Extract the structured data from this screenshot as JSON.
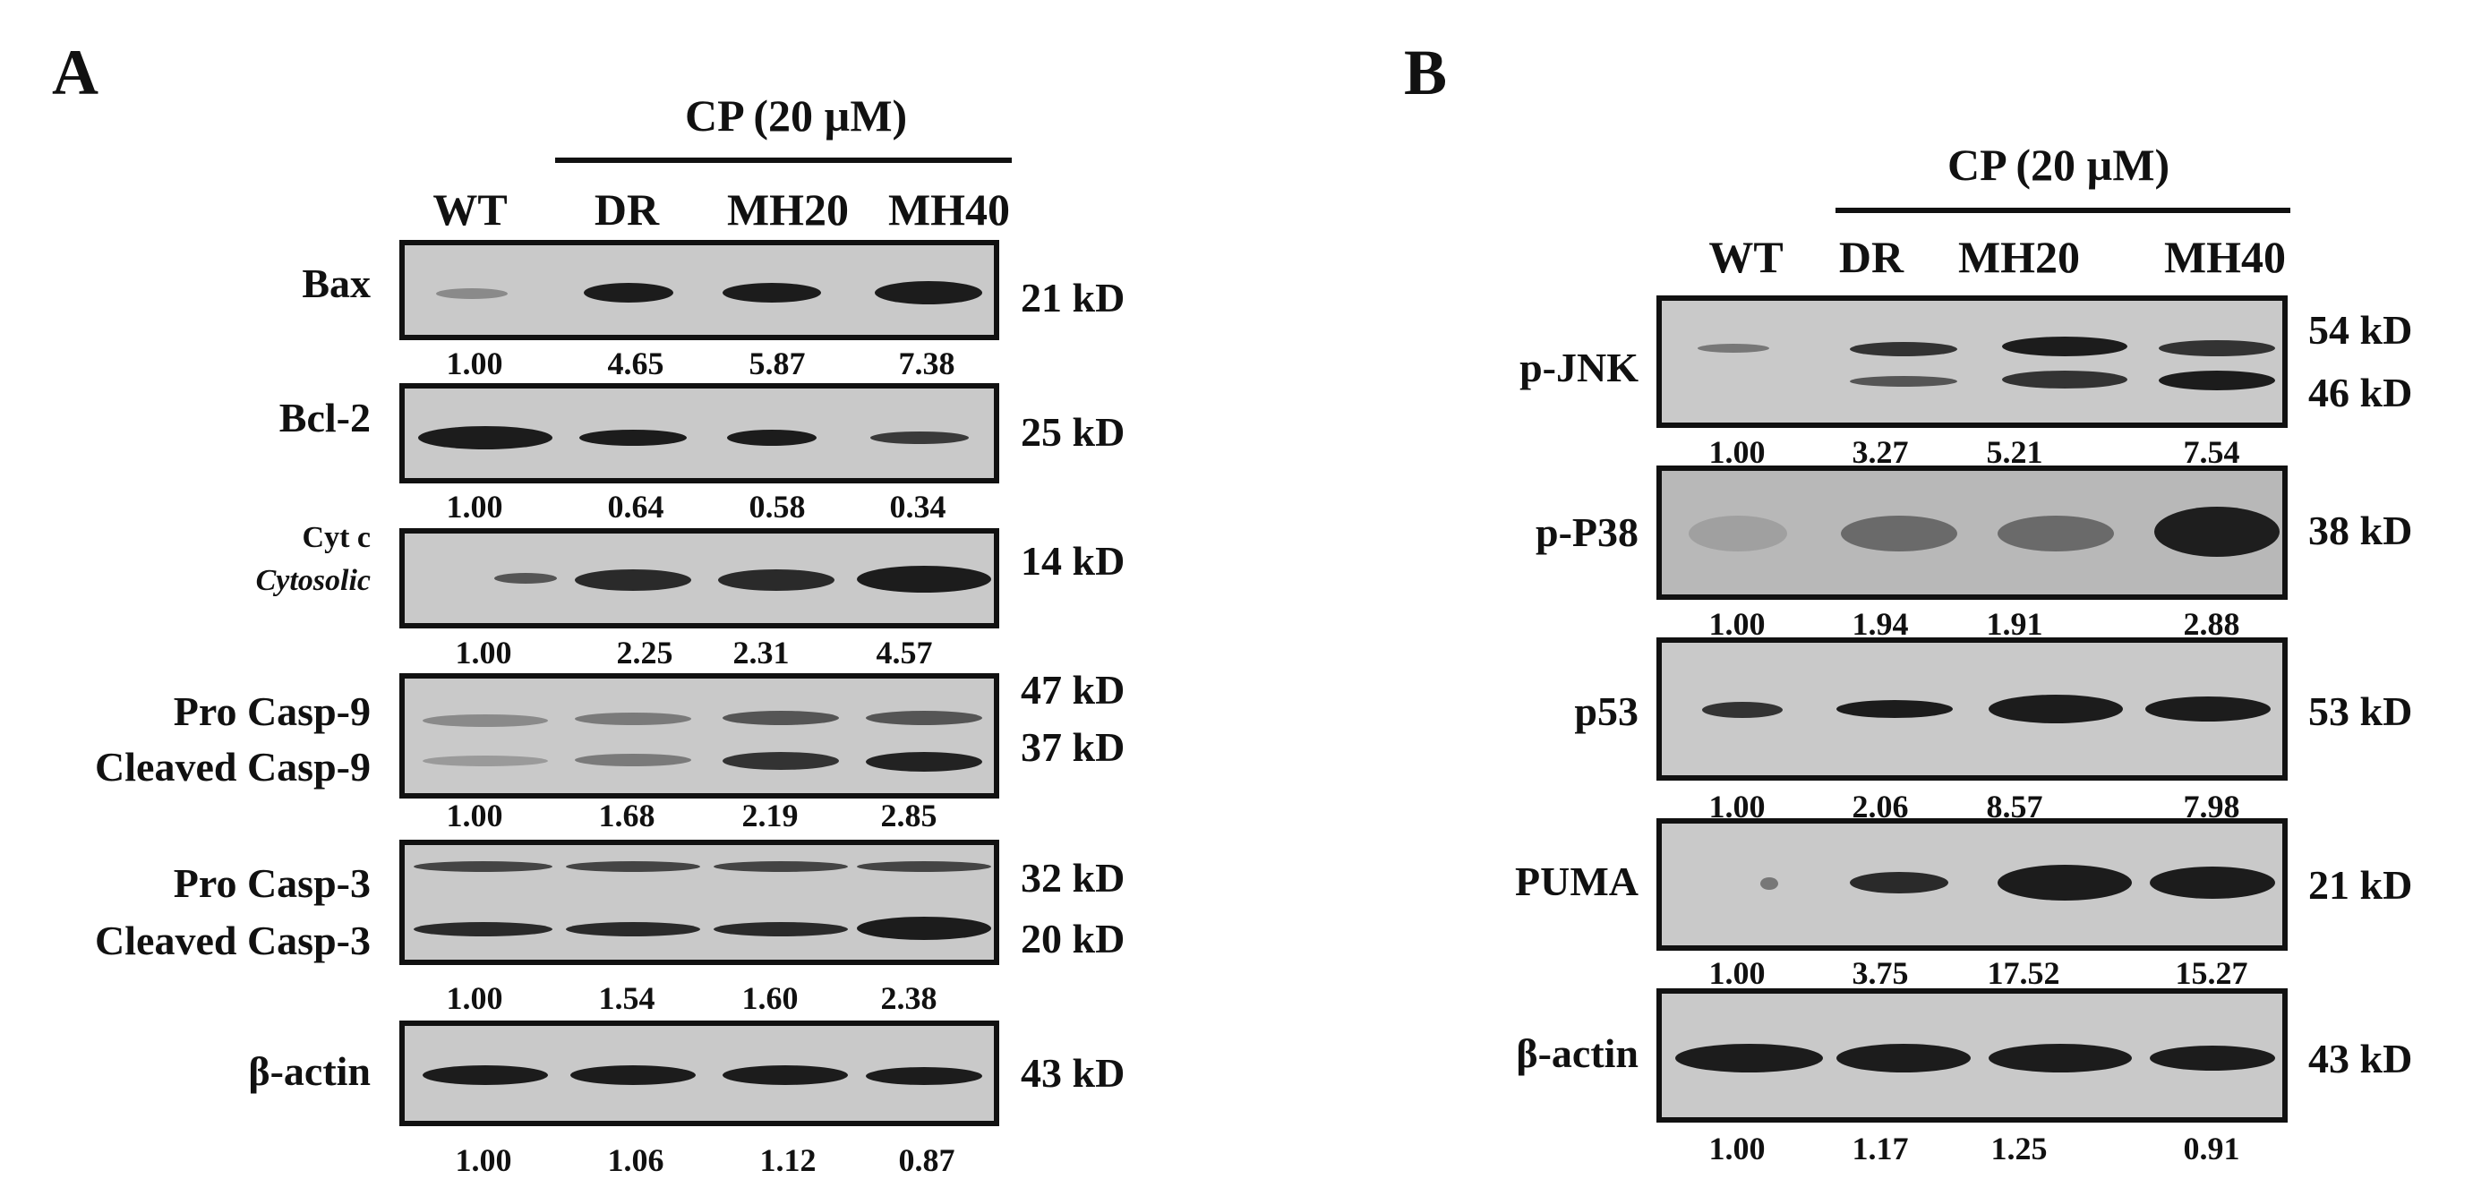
{
  "panel_a": {
    "letter": "A",
    "treatment": "CP (20 µM)",
    "lanes": [
      "WT",
      "DR",
      "MH20",
      "MH40"
    ],
    "rows": [
      {
        "label": "Bax",
        "kd": [
          "21 kD"
        ],
        "values": [
          "1.00",
          "4.65",
          "5.87",
          "7.38"
        ]
      },
      {
        "label": "Bcl-2",
        "kd": [
          "25 kD"
        ],
        "values": [
          "1.00",
          "0.64",
          "0.58",
          "0.34"
        ]
      },
      {
        "label": "Cyt c",
        "label2": "Cytosolic",
        "kd": [
          "14 kD"
        ],
        "values": [
          "1.00",
          "2.25",
          "2.31",
          "4.57"
        ]
      },
      {
        "label": "Pro Casp-9",
        "label2": "Cleaved Casp-9",
        "kd": [
          "47 kD",
          "37 kD"
        ],
        "values": [
          "1.00",
          "1.68",
          "2.19",
          "2.85"
        ]
      },
      {
        "label": "Pro Casp-3",
        "label2": "Cleaved Casp-3",
        "kd": [
          "32 kD",
          "20 kD"
        ],
        "values": [
          "1.00",
          "1.54",
          "1.60",
          "2.38"
        ]
      },
      {
        "label": "β-actin",
        "kd": [
          "43 kD"
        ],
        "values": [
          "1.00",
          "1.06",
          "1.12",
          "0.87"
        ]
      }
    ]
  },
  "panel_b": {
    "letter": "B",
    "treatment": "CP (20 µM)",
    "lanes": [
      "WT",
      "DR",
      "MH20",
      "MH40"
    ],
    "rows": [
      {
        "label": "p-JNK",
        "kd": [
          "54 kD",
          "46 kD"
        ],
        "values": [
          "1.00",
          "3.27",
          "5.21",
          "7.54"
        ]
      },
      {
        "label": "p-P38",
        "kd": [
          "38 kD"
        ],
        "values": [
          "1.00",
          "1.94",
          "1.91",
          "2.88"
        ]
      },
      {
        "label": "p53",
        "kd": [
          "53 kD"
        ],
        "values": [
          "1.00",
          "2.06",
          "8.57",
          "7.98"
        ]
      },
      {
        "label": "PUMA",
        "kd": [
          "21 kD"
        ],
        "values": [
          "1.00",
          "3.75",
          "17.52",
          "15.27"
        ]
      },
      {
        "label": "β-actin",
        "kd": [
          "43 kD"
        ],
        "values": [
          "1.00",
          "1.17",
          "1.25",
          "0.91"
        ]
      }
    ]
  }
}
